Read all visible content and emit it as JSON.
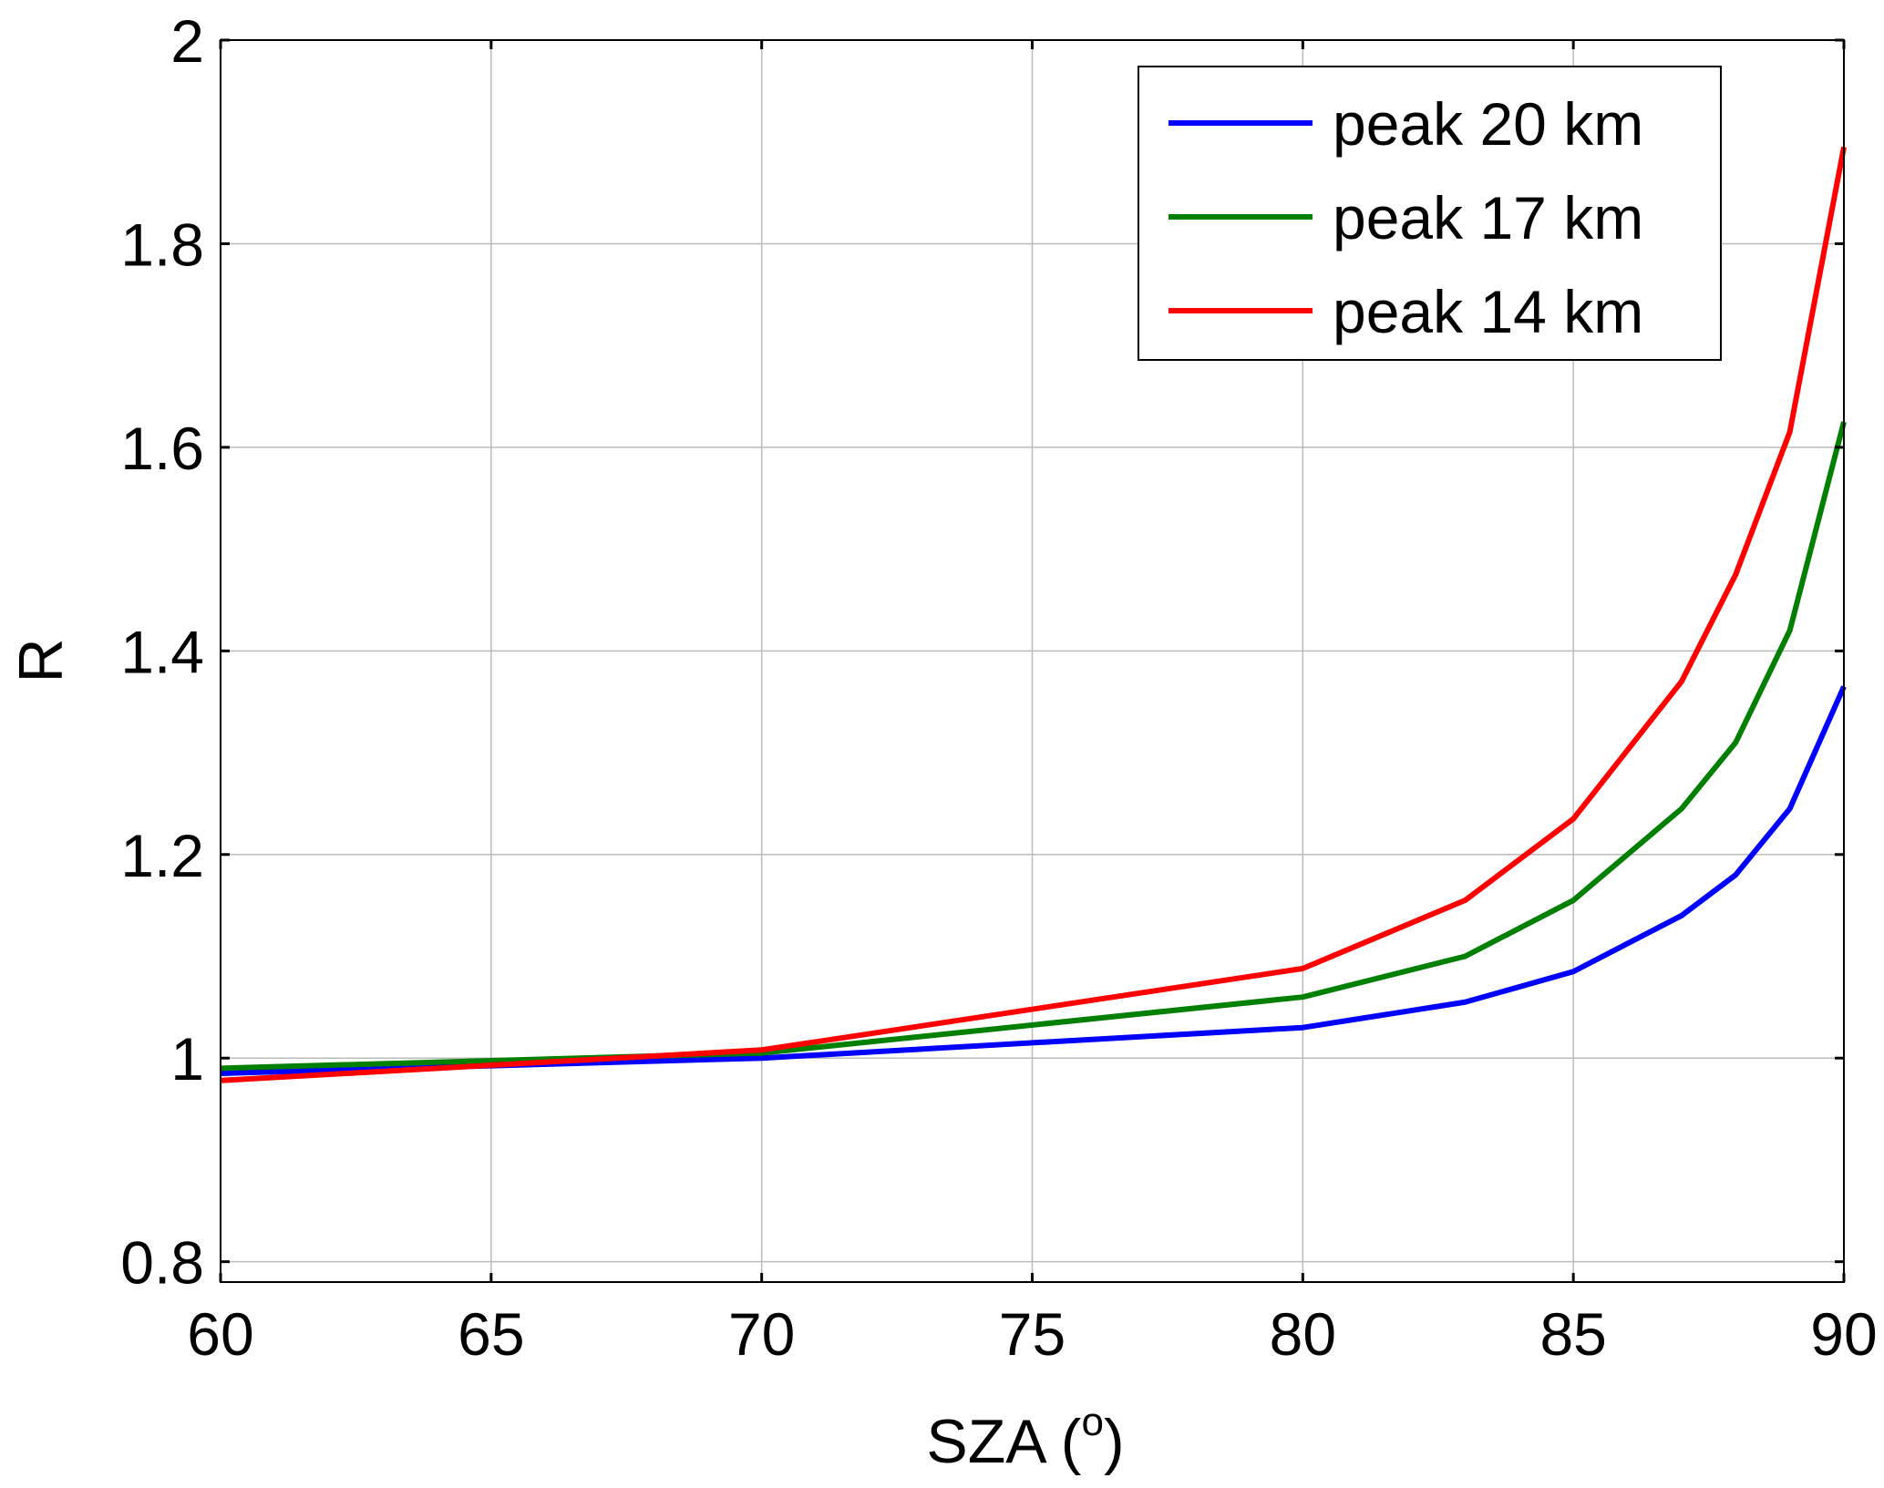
{
  "chart_data": {
    "type": "line",
    "title": "",
    "xlabel": "SZA (",
    "xlabel_sup": "o",
    "xlabel_end": ")",
    "ylabel": "R",
    "xlim": [
      60,
      90
    ],
    "ylim": [
      0.78,
      2.0
    ],
    "grid": true,
    "legend_position": "top-right",
    "xticks": [
      60,
      65,
      70,
      75,
      80,
      85,
      90
    ],
    "xtick_labels": [
      "60",
      "65",
      "70",
      "75",
      "80",
      "85",
      "90"
    ],
    "yticks": [
      0.8,
      1.0,
      1.2,
      1.4,
      1.6,
      1.8,
      2.0
    ],
    "ytick_labels": [
      "0.8",
      "1",
      "1.2",
      "1.4",
      "1.6",
      "1.8",
      "2"
    ],
    "x": [
      60,
      70,
      80,
      83,
      85,
      87,
      88,
      89,
      90
    ],
    "series": [
      {
        "name": "peak 20 km",
        "color": "#0000ff",
        "values": [
          0.985,
          1.0,
          1.03,
          1.055,
          1.085,
          1.14,
          1.18,
          1.245,
          1.365
        ]
      },
      {
        "name": "peak 17 km",
        "color": "#007f00",
        "values": [
          0.99,
          1.005,
          1.06,
          1.1,
          1.155,
          1.245,
          1.31,
          1.42,
          1.625
        ]
      },
      {
        "name": "peak 14 km",
        "color": "#ff0000",
        "values": [
          0.978,
          1.008,
          1.088,
          1.155,
          1.235,
          1.37,
          1.475,
          1.615,
          1.895
        ]
      }
    ]
  }
}
